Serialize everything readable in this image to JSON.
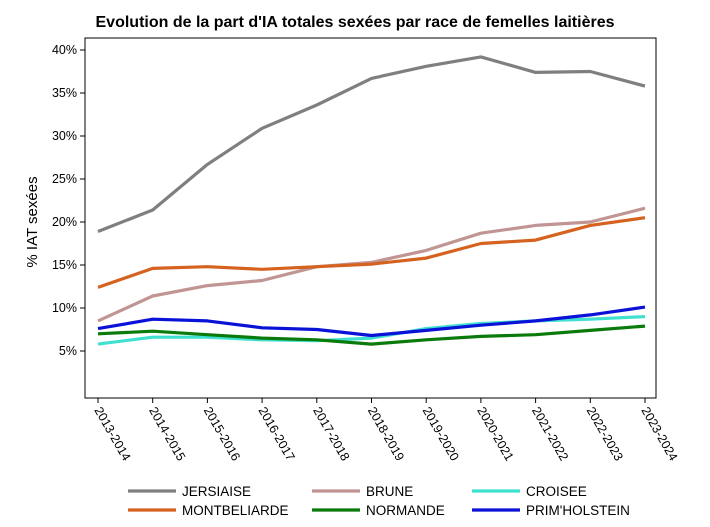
{
  "chart_data": {
    "type": "line",
    "title": "Evolution de la part d'IA totales sexées par race de femelles laitières",
    "xlabel": "",
    "ylabel": "% IAT sexées",
    "categories": [
      "2013-2014",
      "2014-2015",
      "2015-2016",
      "2016-2017",
      "2017-2018",
      "2018-2019",
      "2019-2020",
      "2020-2021",
      "2021-2022",
      "2022-2023",
      "2023-2024"
    ],
    "ylim": [
      0,
      40
    ],
    "yticks": [
      5,
      10,
      15,
      20,
      25,
      30,
      35,
      40
    ],
    "ytick_labels": [
      "5%",
      "10%",
      "15%",
      "20%",
      "25%",
      "30%",
      "35%",
      "40%"
    ],
    "grid": false,
    "legend_position": "bottom",
    "series": [
      {
        "name": "JERSIAISE",
        "color": "#7f7f7f",
        "values": [
          18.9,
          21.4,
          26.7,
          30.9,
          33.6,
          36.7,
          38.1,
          39.2,
          37.4,
          37.5,
          35.8
        ]
      },
      {
        "name": "BRUNE",
        "color": "#c09593",
        "values": [
          8.5,
          11.4,
          12.6,
          13.2,
          14.8,
          15.3,
          16.7,
          18.7,
          19.6,
          20.0,
          21.6
        ]
      },
      {
        "name": "CROISEE",
        "color": "#3fe0d0",
        "values": [
          5.8,
          6.6,
          6.6,
          6.3,
          6.2,
          6.5,
          7.6,
          8.2,
          8.5,
          8.7,
          9.0
        ]
      },
      {
        "name": "MONTBELIARDE",
        "color": "#d5621f",
        "values": [
          12.4,
          14.6,
          14.8,
          14.5,
          14.8,
          15.1,
          15.8,
          17.5,
          17.9,
          19.6,
          20.5
        ]
      },
      {
        "name": "NORMANDE",
        "color": "#0a7a0a",
        "values": [
          7.0,
          7.3,
          6.9,
          6.5,
          6.3,
          5.8,
          6.3,
          6.7,
          6.9,
          7.4,
          7.9
        ]
      },
      {
        "name": "PRIM'HOLSTEIN",
        "color": "#0a12d8",
        "values": [
          7.6,
          8.7,
          8.5,
          7.7,
          7.5,
          6.8,
          7.4,
          8.0,
          8.5,
          9.2,
          10.1
        ]
      }
    ]
  }
}
